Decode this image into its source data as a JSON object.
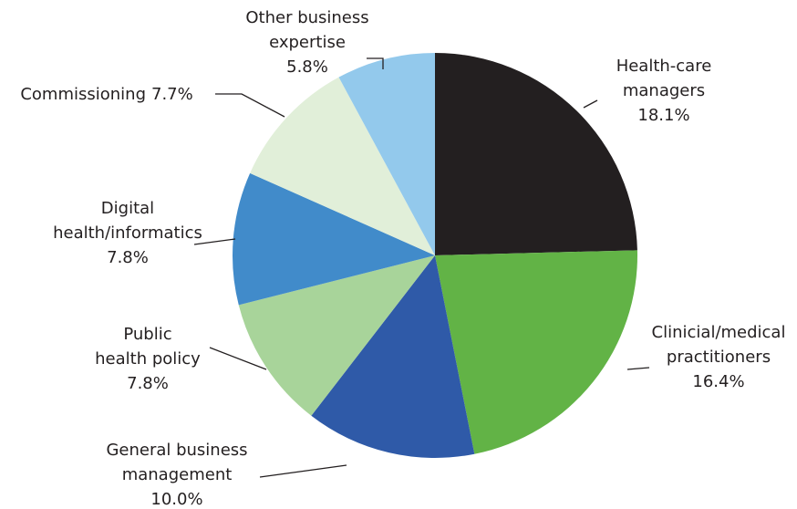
{
  "chart_data": {
    "type": "pie",
    "categories": [
      "Health-care managers",
      "Clinicial/medical practitioners",
      "General business management",
      "Public health policy",
      "Digital health/informatics",
      "Commissioning",
      "Other business expertise"
    ],
    "values": [
      18.1,
      16.4,
      10.0,
      7.8,
      7.8,
      7.7,
      5.8
    ],
    "value_labels": [
      "18.1%",
      "16.4%",
      "10.0%",
      "7.8%",
      "7.8%",
      "7.7%",
      "5.8%"
    ],
    "colors": [
      "#231f20",
      "#62b346",
      "#2f5aa8",
      "#a8d49a",
      "#418bca",
      "#e1efd9",
      "#93c9ec"
    ]
  }
}
